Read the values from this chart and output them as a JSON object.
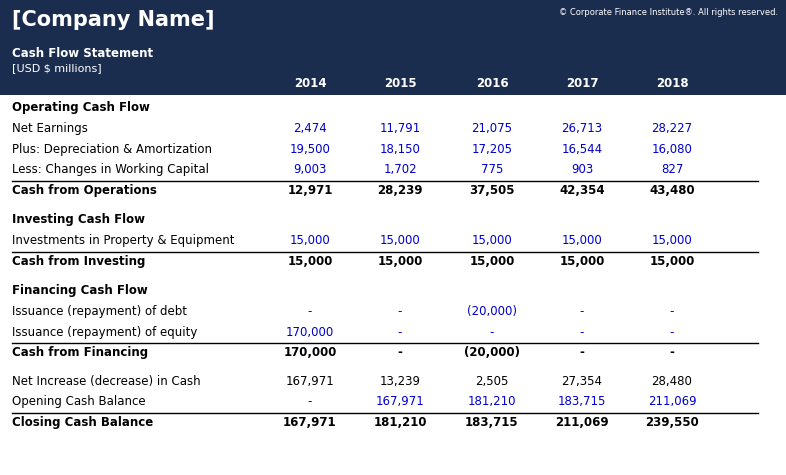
{
  "header_bg": "#1b2d4f",
  "header_text_color": "#ffffff",
  "company_name": "[Company Name]",
  "copyright": "© Corporate Finance Institute®. All rights reserved.",
  "subtitle1": "Cash Flow Statement",
  "subtitle2": "[USD $ millions]",
  "years": [
    "2014",
    "2015",
    "2016",
    "2017",
    "2018"
  ],
  "bg_color": "#ffffff",
  "label_color": "#000000",
  "blue_color": "#0000cd",
  "rows": [
    {
      "label": "Operating Cash Flow",
      "values": [
        "",
        "",
        "",
        "",
        ""
      ],
      "style": "section_header"
    },
    {
      "label": "Net Earnings",
      "values": [
        "2,474",
        "11,791",
        "21,075",
        "26,713",
        "28,227"
      ],
      "style": "data_blue"
    },
    {
      "label": "Plus: Depreciation & Amortization",
      "values": [
        "19,500",
        "18,150",
        "17,205",
        "16,544",
        "16,080"
      ],
      "style": "data_blue"
    },
    {
      "label": "Less: Changes in Working Capital",
      "values": [
        "9,003",
        "1,702",
        "775",
        "903",
        "827"
      ],
      "style": "data_blue"
    },
    {
      "label": "Cash from Operations",
      "values": [
        "12,971",
        "28,239",
        "37,505",
        "42,354",
        "43,480"
      ],
      "style": "bold_border_top"
    },
    {
      "label": "",
      "values": [
        "",
        "",
        "",
        "",
        ""
      ],
      "style": "spacer"
    },
    {
      "label": "Investing Cash Flow",
      "values": [
        "",
        "",
        "",
        "",
        ""
      ],
      "style": "section_header"
    },
    {
      "label": "Investments in Property & Equipment",
      "values": [
        "15,000",
        "15,000",
        "15,000",
        "15,000",
        "15,000"
      ],
      "style": "data_blue"
    },
    {
      "label": "Cash from Investing",
      "values": [
        "15,000",
        "15,000",
        "15,000",
        "15,000",
        "15,000"
      ],
      "style": "bold_border_top"
    },
    {
      "label": "",
      "values": [
        "",
        "",
        "",
        "",
        ""
      ],
      "style": "spacer"
    },
    {
      "label": "Financing Cash Flow",
      "values": [
        "",
        "",
        "",
        "",
        ""
      ],
      "style": "section_header"
    },
    {
      "label": "Issuance (repayment) of debt",
      "values": [
        "-",
        "-",
        "(20,000)",
        "-",
        "-"
      ],
      "style": "data_blue"
    },
    {
      "label": "Issuance (repayment) of equity",
      "values": [
        "170,000",
        "-",
        "-",
        "-",
        "-"
      ],
      "style": "data_blue"
    },
    {
      "label": "Cash from Financing",
      "values": [
        "170,000",
        "-",
        "(20,000)",
        "-",
        "-"
      ],
      "style": "bold_border_top"
    },
    {
      "label": "",
      "values": [
        "",
        "",
        "",
        "",
        ""
      ],
      "style": "spacer"
    },
    {
      "label": "Net Increase (decrease) in Cash",
      "values": [
        "167,971",
        "13,239",
        "2,505",
        "27,354",
        "28,480"
      ],
      "style": "data_plain"
    },
    {
      "label": "Opening Cash Balance",
      "values": [
        "-",
        "167,971",
        "181,210",
        "183,715",
        "211,069"
      ],
      "style": "data_blue"
    },
    {
      "label": "Closing Cash Balance",
      "values": [
        "167,971",
        "181,210",
        "183,715",
        "211,069",
        "239,550"
      ],
      "style": "bold_border_top"
    }
  ]
}
